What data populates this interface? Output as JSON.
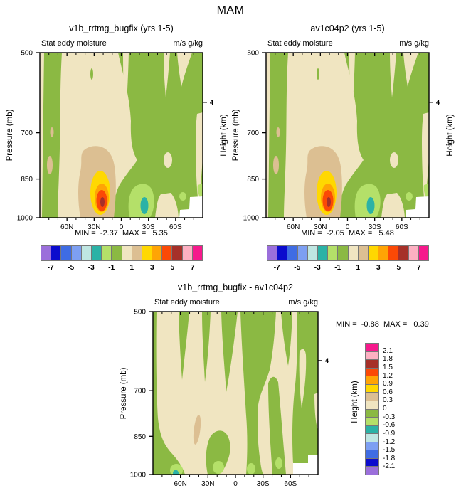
{
  "title": "MAM",
  "panels": {
    "left": {
      "title": "v1b_rrtmg_bugfix (yrs 1-5)",
      "field": "Stat eddy moisture",
      "units": "m/s g/kg",
      "minmax": "MIN =  -2.37  MAX =   5.35",
      "pressure_label": "Pressure (mb)",
      "height_label": "Height (km)"
    },
    "right": {
      "title": "av1c04p2 (yrs 1-5)",
      "field": "Stat eddy moisture",
      "units": "m/s g/kg",
      "minmax": "MIN =  -2.05  MAX =   5.48",
      "pressure_label": "Pressure (mb)",
      "height_label": "Height (km)"
    },
    "diff": {
      "title": "v1b_rrtmg_bugfix - av1c04p2",
      "field": "Stat eddy moisture",
      "units": "m/s g/kg",
      "minmax": "MIN =  -0.88  MAX =   0.39",
      "pressure_label": "Pressure (mb)",
      "height_label": "Height (km)"
    }
  },
  "axes": {
    "pressure_ticks": [
      "500",
      "700",
      "850",
      "1000"
    ],
    "pressure_values": [
      500,
      700,
      850,
      1000
    ],
    "pressure_range": [
      500,
      1000
    ],
    "lat_labels": [
      "60N",
      "30N",
      "0",
      "30S",
      "60S"
    ],
    "lat_values": [
      60,
      30,
      0,
      -30,
      -60
    ],
    "lat_minor": [
      80,
      70,
      50,
      40,
      20,
      10,
      -10,
      -20,
      -40,
      -50,
      -70,
      -80
    ],
    "height_tick": {
      "label": "4",
      "mb": 616
    }
  },
  "palette": {
    "purple": "#9b6fdb",
    "darkblue": "#0b0bcd",
    "blue": "#3f6ce3",
    "lightblue": "#7d9ff2",
    "palecyan": "#bfe6e2",
    "teal": "#2bb2a6",
    "lightgreen": "#b4e069",
    "green": "#8bb943",
    "cream": "#f0e5c1",
    "tan": "#dcbf92",
    "yellow": "#ffd801",
    "orange": "#ffa405",
    "orangered": "#fb4906",
    "darkred": "#a63029",
    "pink": "#fdb0c2",
    "magenta": "#f6198c",
    "white": "#ffffff"
  },
  "colorbar_h": {
    "order": [
      "purple",
      "darkblue",
      "blue",
      "lightblue",
      "palecyan",
      "teal",
      "lightgreen",
      "green",
      "cream",
      "tan",
      "yellow",
      "orange",
      "orangered",
      "darkred",
      "pink",
      "magenta"
    ],
    "labels": [
      "-7",
      "-5",
      "-3",
      "-1",
      "1",
      "3",
      "5",
      "7"
    ]
  },
  "colorbar_v": {
    "order": [
      "magenta",
      "pink",
      "darkred",
      "orangered",
      "orange",
      "yellow",
      "tan",
      "cream",
      "green",
      "lightgreen",
      "teal",
      "palecyan",
      "lightblue",
      "blue",
      "darkblue",
      "purple"
    ],
    "labels": [
      "2.1",
      "1.8",
      "1.5",
      "1.2",
      "0.9",
      "0.6",
      "0.3",
      "0",
      "-0.3",
      "-0.6",
      "-0.9",
      "-1.2",
      "-1.5",
      "-1.8",
      "-2.1"
    ]
  },
  "chart_data": [
    {
      "type": "heatmap",
      "variant": "filled-contour",
      "season": "MAM",
      "title": "v1b_rrtmg_bugfix (yrs 1-5)",
      "field": "Stat eddy moisture",
      "units": "m/s g/kg",
      "x": {
        "label": "latitude",
        "tick_labels": [
          "60N",
          "30N",
          "0",
          "30S",
          "60S"
        ],
        "tick_deg": [
          60,
          30,
          0,
          -30,
          -60
        ],
        "range_deg": [
          90,
          -90
        ],
        "minor_step_deg": 10
      },
      "y": {
        "label": "Pressure (mb)",
        "ticks": [
          500,
          700,
          850,
          1000
        ],
        "range": [
          500,
          1000
        ],
        "scale": "log"
      },
      "y2": {
        "label": "Height (km)",
        "ticks_km": [
          4
        ]
      },
      "min": -2.37,
      "max": 5.35,
      "levels": [
        -7,
        -6,
        -5,
        -4,
        -3,
        -2,
        -1,
        0,
        1,
        2,
        3,
        4,
        5,
        6,
        7
      ],
      "legend_labels": [
        -7,
        -5,
        -3,
        -1,
        1,
        3,
        5,
        7
      ],
      "grid": false,
      "legend_position": "below",
      "features": [
        "maximum ~5.35 near 22N at ~930 mb: dark-red core ringed by orange-red, orange, yellow inside a tan (1-2) patch",
        "minimum ~-2.37 near 23S at ~950 mb: teal (-3,-2) core inside a light-green (-2,-1) patch",
        "northern mid-latitudes mostly 0..1 (cream); southern hemisphere and polar columns mostly -1..0 (green)",
        "white missing-data wedge at bottom-right (Antarctic surface)"
      ]
    },
    {
      "type": "heatmap",
      "variant": "filled-contour",
      "season": "MAM",
      "title": "av1c04p2 (yrs 1-5)",
      "field": "Stat eddy moisture",
      "units": "m/s g/kg",
      "x": {
        "label": "latitude",
        "tick_labels": [
          "60N",
          "30N",
          "0",
          "30S",
          "60S"
        ],
        "tick_deg": [
          60,
          30,
          0,
          -30,
          -60
        ],
        "range_deg": [
          90,
          -90
        ],
        "minor_step_deg": 10
      },
      "y": {
        "label": "Pressure (mb)",
        "ticks": [
          500,
          700,
          850,
          1000
        ],
        "range": [
          500,
          1000
        ],
        "scale": "log"
      },
      "y2": {
        "label": "Height (km)",
        "ticks_km": [
          4
        ]
      },
      "min": -2.05,
      "max": 5.48,
      "levels": [
        -7,
        -6,
        -5,
        -4,
        -3,
        -2,
        -1,
        0,
        1,
        2,
        3,
        4,
        5,
        6,
        7
      ],
      "legend_labels": [
        -7,
        -5,
        -3,
        -1,
        1,
        3,
        5,
        7
      ],
      "grid": false,
      "legend_position": "below",
      "features": [
        "pattern nearly identical to v1b_rrtmg_bugfix panel",
        "maximum ~5.48 near 22N at ~930 mb; minimum ~-2.05 near 25S at ~950 mb",
        "white missing-data wedge at bottom-right"
      ]
    },
    {
      "type": "heatmap",
      "variant": "filled-contour-difference",
      "season": "MAM",
      "title": "v1b_rrtmg_bugfix - av1c04p2",
      "field": "Stat eddy moisture",
      "units": "m/s g/kg",
      "x": {
        "label": "latitude",
        "tick_labels": [
          "60N",
          "30N",
          "0",
          "30S",
          "60S"
        ],
        "tick_deg": [
          60,
          30,
          0,
          -30,
          -60
        ],
        "range_deg": [
          90,
          -90
        ],
        "minor_step_deg": 10
      },
      "y": {
        "label": "Pressure (mb)",
        "ticks": [
          500,
          700,
          850,
          1000
        ],
        "range": [
          500,
          1000
        ],
        "scale": "log"
      },
      "y2": {
        "label": "Height (km)",
        "ticks_km": [
          4
        ]
      },
      "min": -0.88,
      "max": 0.39,
      "levels": [
        -2.1,
        -1.8,
        -1.5,
        -1.2,
        -0.9,
        -0.6,
        -0.3,
        0,
        0.3,
        0.6,
        0.9,
        1.2,
        1.5,
        1.8,
        2.1
      ],
      "grid": false,
      "legend_position": "right",
      "features": [
        "mostly within -0.3..0.3 (cream and green vertical streaks)",
        "small light-green/teal minimum (~-0.88) near 62N at the surface",
        "thin tan (0.3-0.6) sliver near 40N around 850 mb",
        "white missing-data wedge at bottom-right"
      ]
    }
  ]
}
